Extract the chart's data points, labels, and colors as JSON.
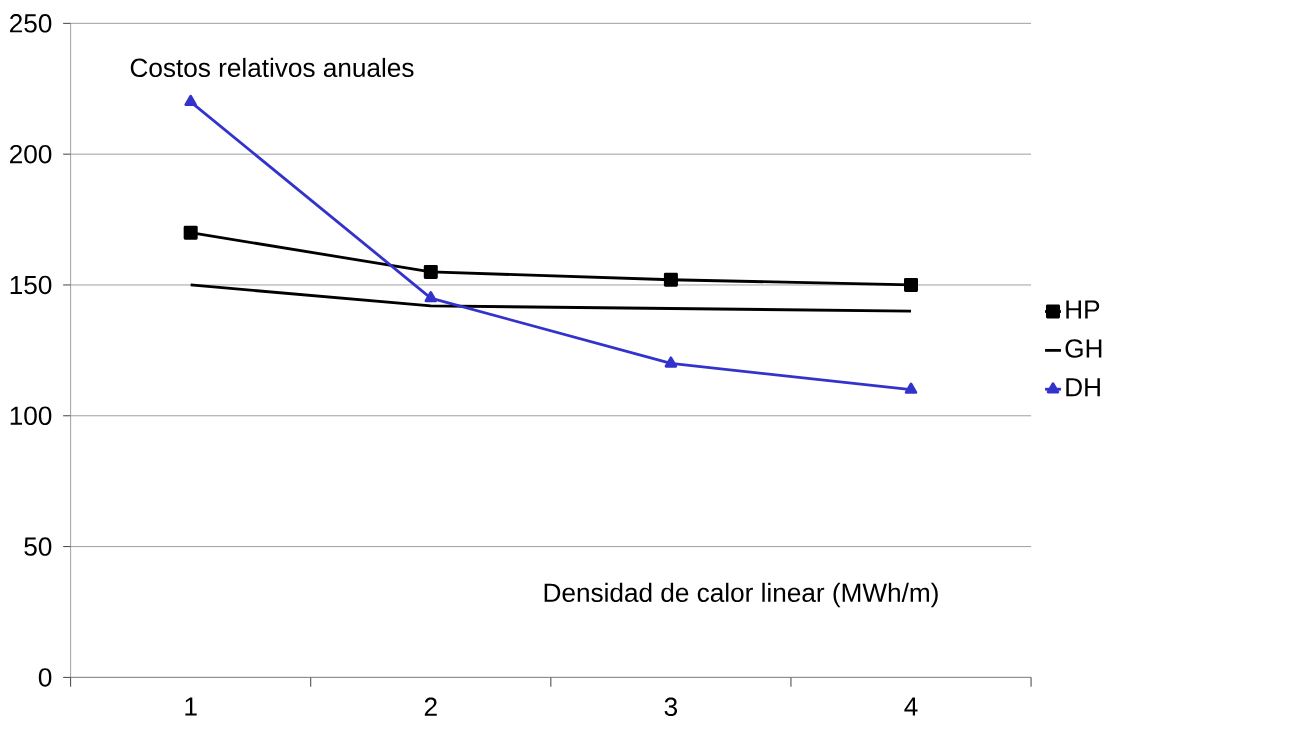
{
  "chart_data": {
    "type": "line",
    "title": "Costos relativos anuales",
    "xlabel": "Densidad de calor linear  (MWh/m)",
    "categories": [
      "1",
      "2",
      "3",
      "4"
    ],
    "series": [
      {
        "name": "HP",
        "color": "#000000",
        "marker": "square",
        "values": [
          170,
          155,
          152,
          150
        ]
      },
      {
        "name": "GH",
        "color": "#000000",
        "marker": "none",
        "values": [
          150,
          142,
          141,
          140
        ]
      },
      {
        "name": "DH",
        "color": "#3333cc",
        "marker": "triangle",
        "values": [
          220,
          145,
          120,
          110
        ]
      }
    ],
    "ylim": [
      0,
      250
    ],
    "yticks": [
      0,
      50,
      100,
      150,
      200,
      250
    ],
    "grid": "y",
    "legend": "right",
    "line_style": "solid"
  }
}
